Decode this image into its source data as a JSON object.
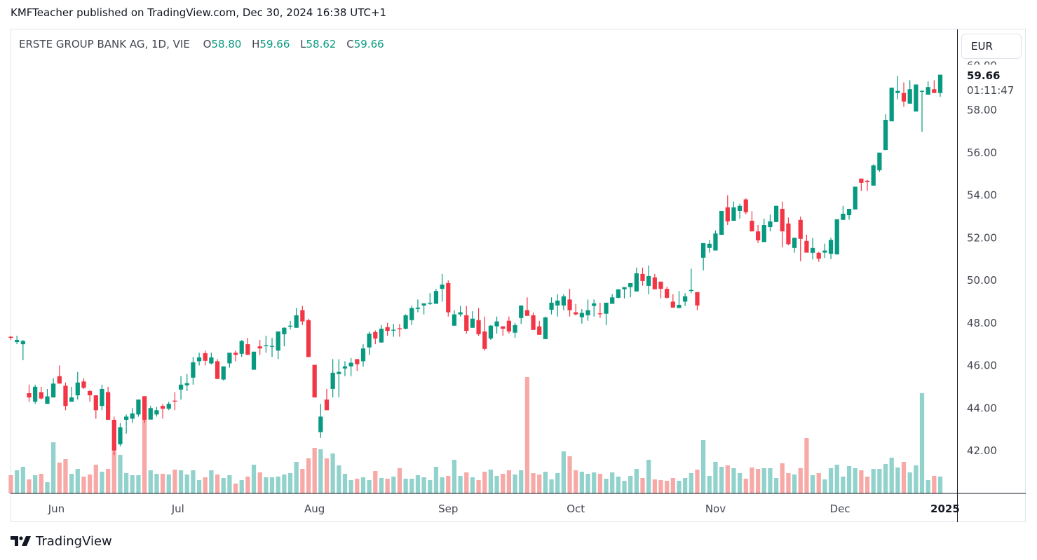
{
  "published": "KMFTeacher published on TradingView.com, Dec 30, 2024 16:38 UTC+1",
  "legend": {
    "symbol": "ERSTE GROUP BANK AG, 1D, VIE",
    "o_label": "O",
    "o": "58.80",
    "h_label": "H",
    "h": "59.66",
    "l_label": "L",
    "l": "58.62",
    "c_label": "C",
    "c": "59.66"
  },
  "currency": "EUR",
  "last_price": "59.66",
  "countdown": "01:11:47",
  "footer": {
    "brand": "TradingView"
  },
  "colors": {
    "up": "#089981",
    "down": "#F23645",
    "vol_up": "#92D2CC",
    "vol_down": "#F7A9A7"
  },
  "chart_data": {
    "type": "candlestick",
    "title": "ERSTE GROUP BANK AG, 1D, VIE",
    "ylim": [
      40.3,
      60.5
    ],
    "y_ticks": [
      "42.00",
      "44.00",
      "46.00",
      "48.00",
      "50.00",
      "52.00",
      "54.00",
      "56.00",
      "58.00",
      "60.00"
    ],
    "y_tick_values": [
      42,
      44,
      46,
      48,
      50,
      52,
      54,
      56,
      58,
      60
    ],
    "x_ticks": [
      {
        "label": "Jun",
        "index": 7.5
      },
      {
        "label": "Jul",
        "index": 27.5
      },
      {
        "label": "Aug",
        "index": 50
      },
      {
        "label": "Sep",
        "index": 72
      },
      {
        "label": "Oct",
        "index": 93
      },
      {
        "label": "Nov",
        "index": 116
      },
      {
        "label": "Dec",
        "index": 136.5
      },
      {
        "label": "2025",
        "index": 153.8
      }
    ],
    "volume_units": "relative",
    "candles_ohlcv": [
      [
        47.35,
        47.4,
        47.2,
        47.3,
        26
      ],
      [
        47.1,
        47.4,
        47.0,
        47.2,
        33
      ],
      [
        47.0,
        47.2,
        46.25,
        47.15,
        38
      ],
      [
        44.7,
        45.1,
        44.3,
        44.5,
        20
      ],
      [
        44.3,
        45.1,
        44.2,
        45.0,
        26
      ],
      [
        44.75,
        45.0,
        44.4,
        44.45,
        28
      ],
      [
        44.2,
        44.9,
        44.2,
        44.55,
        16
      ],
      [
        44.5,
        45.4,
        44.5,
        45.15,
        73
      ],
      [
        45.5,
        46.0,
        45.15,
        45.15,
        44
      ],
      [
        45.05,
        45.2,
        43.9,
        44.1,
        49
      ],
      [
        44.3,
        45.0,
        44.3,
        44.5,
        28
      ],
      [
        44.6,
        45.7,
        44.4,
        45.2,
        35
      ],
      [
        45.25,
        45.4,
        44.9,
        44.95,
        24
      ],
      [
        44.8,
        44.85,
        44.3,
        44.6,
        27
      ],
      [
        44.6,
        44.6,
        43.5,
        43.9,
        41
      ],
      [
        44.1,
        45.1,
        43.9,
        44.9,
        31
      ],
      [
        44.75,
        45.0,
        43.45,
        43.45,
        35
      ],
      [
        43.45,
        43.6,
        41.8,
        42.0,
        60
      ],
      [
        42.3,
        43.3,
        42.2,
        43.1,
        55
      ],
      [
        43.45,
        43.7,
        42.8,
        43.6,
        29
      ],
      [
        43.5,
        44.0,
        43.3,
        43.75,
        26
      ],
      [
        43.7,
        44.4,
        43.6,
        44.4,
        26
      ],
      [
        44.55,
        44.55,
        43.3,
        43.45,
        139
      ],
      [
        43.46,
        44.1,
        43.46,
        44.0,
        33
      ],
      [
        43.7,
        44.05,
        43.6,
        43.9,
        28
      ],
      [
        44.1,
        44.2,
        43.5,
        43.97,
        28
      ],
      [
        43.97,
        44.3,
        43.9,
        44.2,
        27
      ],
      [
        44.35,
        44.75,
        43.9,
        44.33,
        34
      ],
      [
        44.87,
        45.5,
        44.4,
        45.1,
        33
      ],
      [
        45.07,
        45.6,
        44.8,
        45.17,
        27
      ],
      [
        45.43,
        46.4,
        45.1,
        46.15,
        33
      ],
      [
        46.2,
        46.6,
        46.0,
        46.38,
        19
      ],
      [
        46.58,
        46.7,
        46.0,
        46.22,
        23
      ],
      [
        46.1,
        46.6,
        46.05,
        46.38,
        33
      ],
      [
        46.2,
        46.3,
        45.35,
        45.37,
        27
      ],
      [
        45.34,
        45.96,
        45.3,
        45.96,
        22
      ],
      [
        46.1,
        46.6,
        45.9,
        46.6,
        26
      ],
      [
        46.6,
        46.7,
        46.2,
        46.5,
        14
      ],
      [
        46.55,
        47.2,
        46.4,
        47.15,
        19
      ],
      [
        47.0,
        47.3,
        46.5,
        46.5,
        24
      ],
      [
        45.8,
        46.65,
        45.8,
        46.65,
        41
      ],
      [
        46.9,
        47.2,
        46.5,
        46.8,
        30
      ],
      [
        46.93,
        47.4,
        46.6,
        46.96,
        23
      ],
      [
        46.9,
        47.3,
        46.4,
        46.92,
        23
      ],
      [
        46.7,
        47.6,
        46.3,
        47.6,
        24
      ],
      [
        47.47,
        47.8,
        46.9,
        47.77,
        27
      ],
      [
        47.83,
        48.1,
        47.7,
        47.87,
        29
      ],
      [
        47.77,
        48.7,
        47.77,
        48.36,
        45
      ],
      [
        48.6,
        48.8,
        47.9,
        48.07,
        35
      ],
      [
        48.13,
        48.2,
        46.4,
        46.4,
        50
      ],
      [
        46.03,
        46.03,
        44.5,
        44.5,
        65
      ],
      [
        42.87,
        44.2,
        42.6,
        43.6,
        63
      ],
      [
        44.4,
        44.9,
        43.9,
        43.9,
        50
      ],
      [
        44.9,
        46.3,
        44.5,
        45.66,
        57
      ],
      [
        45.6,
        46.3,
        44.5,
        45.7,
        40
      ],
      [
        45.86,
        46.2,
        45.5,
        45.96,
        28
      ],
      [
        45.96,
        46.35,
        45.5,
        46.13,
        19
      ],
      [
        46.3,
        46.3,
        45.75,
        46.06,
        21
      ],
      [
        46.2,
        47.0,
        45.95,
        46.8,
        23
      ],
      [
        46.85,
        47.6,
        46.5,
        47.5,
        19
      ],
      [
        47.57,
        47.65,
        47.0,
        47.27,
        32
      ],
      [
        47.08,
        47.9,
        47.08,
        47.73,
        22
      ],
      [
        47.8,
        48.0,
        47.4,
        47.63,
        21
      ],
      [
        47.65,
        47.95,
        47.35,
        47.68,
        24
      ],
      [
        47.75,
        47.95,
        47.35,
        47.73,
        36
      ],
      [
        47.73,
        48.4,
        47.7,
        48.36,
        21
      ],
      [
        48.13,
        48.8,
        47.9,
        48.7,
        21
      ],
      [
        48.66,
        49.1,
        48.5,
        48.72,
        26
      ],
      [
        48.82,
        48.92,
        48.4,
        48.92,
        23
      ],
      [
        48.9,
        49.4,
        48.85,
        48.95,
        19
      ],
      [
        48.9,
        49.6,
        48.9,
        49.5,
        38
      ],
      [
        49.6,
        50.3,
        49.0,
        49.8,
        23
      ],
      [
        49.87,
        50.0,
        48.3,
        48.5,
        25
      ],
      [
        47.87,
        48.6,
        47.85,
        48.4,
        48
      ],
      [
        48.4,
        48.8,
        48.3,
        48.5,
        25
      ],
      [
        48.36,
        48.8,
        47.5,
        47.63,
        30
      ],
      [
        47.77,
        48.55,
        47.77,
        48.2,
        23
      ],
      [
        48.13,
        48.7,
        47.4,
        47.47,
        19
      ],
      [
        47.6,
        48.3,
        46.7,
        46.78,
        31
      ],
      [
        47.27,
        47.9,
        47.2,
        47.87,
        34
      ],
      [
        47.84,
        48.3,
        47.5,
        48.07,
        25
      ],
      [
        47.84,
        47.84,
        47.4,
        47.73,
        28
      ],
      [
        48.1,
        48.3,
        47.5,
        47.6,
        33
      ],
      [
        47.54,
        48.0,
        47.3,
        47.9,
        27
      ],
      [
        48.23,
        48.82,
        47.95,
        48.82,
        33
      ],
      [
        48.6,
        49.2,
        48.33,
        48.33,
        166
      ],
      [
        48.36,
        48.5,
        47.67,
        47.67,
        29
      ],
      [
        47.84,
        48.1,
        47.44,
        47.44,
        27
      ],
      [
        47.24,
        48.3,
        47.24,
        48.26,
        31
      ],
      [
        48.62,
        49.2,
        48.4,
        48.95,
        20
      ],
      [
        48.82,
        49.35,
        48.3,
        49.05,
        29
      ],
      [
        48.82,
        49.35,
        48.6,
        49.25,
        60
      ],
      [
        49.1,
        49.6,
        48.3,
        48.6,
        53
      ],
      [
        48.5,
        48.9,
        48.35,
        48.4,
        33
      ],
      [
        48.27,
        48.65,
        47.97,
        48.47,
        31
      ],
      [
        48.36,
        49.1,
        48.1,
        48.6,
        28
      ],
      [
        48.8,
        49.1,
        48.3,
        48.92,
        30
      ],
      [
        48.45,
        48.95,
        48.23,
        48.42,
        28
      ],
      [
        48.43,
        48.95,
        47.9,
        48.95,
        21
      ],
      [
        48.9,
        49.35,
        48.9,
        49.2,
        30
      ],
      [
        49.18,
        49.58,
        49.15,
        49.58,
        24
      ],
      [
        49.58,
        49.68,
        49.15,
        49.68,
        18
      ],
      [
        49.68,
        49.87,
        49.2,
        49.87,
        25
      ],
      [
        49.48,
        50.6,
        49.48,
        50.33,
        35
      ],
      [
        50.3,
        50.6,
        49.75,
        49.97,
        22
      ],
      [
        49.74,
        50.7,
        49.35,
        50.2,
        48
      ],
      [
        50.14,
        50.3,
        49.58,
        49.58,
        20
      ],
      [
        49.94,
        49.94,
        49.15,
        49.6,
        19
      ],
      [
        49.6,
        49.7,
        49.15,
        49.18,
        18
      ],
      [
        49.0,
        49.35,
        48.72,
        48.72,
        22
      ],
      [
        48.7,
        49.5,
        48.7,
        48.85,
        18
      ],
      [
        49.0,
        49.4,
        48.8,
        49.25,
        22
      ],
      [
        49.5,
        50.55,
        49.4,
        49.55,
        29
      ],
      [
        49.45,
        49.45,
        48.6,
        48.82,
        34
      ],
      [
        51.06,
        51.75,
        50.47,
        51.75,
        76
      ],
      [
        51.52,
        51.9,
        51.3,
        51.72,
        25
      ],
      [
        51.4,
        52.35,
        51.4,
        52.2,
        45
      ],
      [
        52.14,
        53.26,
        52.14,
        53.26,
        38
      ],
      [
        53.43,
        54.0,
        52.6,
        52.77,
        40
      ],
      [
        52.8,
        53.7,
        52.8,
        53.43,
        36
      ],
      [
        53.26,
        53.6,
        52.9,
        53.5,
        29
      ],
      [
        53.8,
        53.85,
        53.1,
        53.2,
        21
      ],
      [
        52.8,
        53.25,
        52.3,
        52.3,
        37
      ],
      [
        52.3,
        52.6,
        51.75,
        51.88,
        35
      ],
      [
        51.8,
        52.9,
        51.8,
        52.6,
        36
      ],
      [
        52.5,
        53.1,
        52.3,
        52.77,
        36
      ],
      [
        52.74,
        53.5,
        52.74,
        53.5,
        22
      ],
      [
        53.36,
        53.7,
        51.55,
        52.3,
        43
      ],
      [
        52.67,
        52.95,
        51.65,
        51.7,
        29
      ],
      [
        51.52,
        52.0,
        51.3,
        52.0,
        27
      ],
      [
        52.84,
        53.0,
        50.9,
        51.95,
        36
      ],
      [
        51.85,
        52.15,
        51.3,
        51.3,
        79
      ],
      [
        51.29,
        52.0,
        50.98,
        51.52,
        26
      ],
      [
        51.29,
        51.35,
        50.87,
        51.02,
        29
      ],
      [
        51.3,
        51.72,
        51.05,
        51.4,
        20
      ],
      [
        51.25,
        52.0,
        51.0,
        51.9,
        36
      ],
      [
        51.22,
        52.87,
        51.22,
        52.87,
        41
      ],
      [
        52.84,
        53.5,
        52.84,
        53.13,
        24
      ],
      [
        53.06,
        53.36,
        52.85,
        53.36,
        39
      ],
      [
        53.33,
        54.4,
        53.33,
        54.4,
        36
      ],
      [
        54.78,
        54.78,
        54.2,
        54.58,
        33
      ],
      [
        54.68,
        54.72,
        54.2,
        54.62,
        24
      ],
      [
        54.45,
        55.45,
        54.45,
        55.4,
        35
      ],
      [
        55.17,
        56.0,
        55.1,
        56.0,
        35
      ],
      [
        56.12,
        57.8,
        56.12,
        57.54,
        42
      ],
      [
        57.47,
        59.05,
        57.47,
        59.05,
        51
      ],
      [
        58.8,
        59.6,
        58.5,
        58.9,
        37
      ],
      [
        58.8,
        59.3,
        58.15,
        58.4,
        45
      ],
      [
        58.3,
        59.4,
        58.3,
        58.98,
        30
      ],
      [
        57.93,
        59.2,
        57.93,
        59.2,
        40
      ],
      [
        58.87,
        58.93,
        56.98,
        58.9,
        143
      ],
      [
        58.72,
        59.35,
        58.72,
        59.08,
        19
      ],
      [
        58.98,
        59.4,
        58.8,
        58.8,
        25
      ],
      [
        58.8,
        59.66,
        58.62,
        59.66,
        24
      ]
    ]
  }
}
